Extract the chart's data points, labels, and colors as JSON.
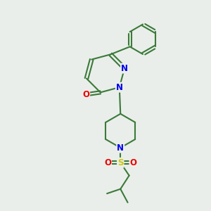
{
  "background_color": "#eaeeea",
  "bond_color": "#3a7a3a",
  "bond_width": 1.5,
  "atom_colors": {
    "N": "#0000ee",
    "O": "#ee0000",
    "S": "#cccc00",
    "C": "#3a7a3a"
  },
  "font_size": 8.5,
  "figsize": [
    3.0,
    3.0
  ],
  "dpi": 100
}
